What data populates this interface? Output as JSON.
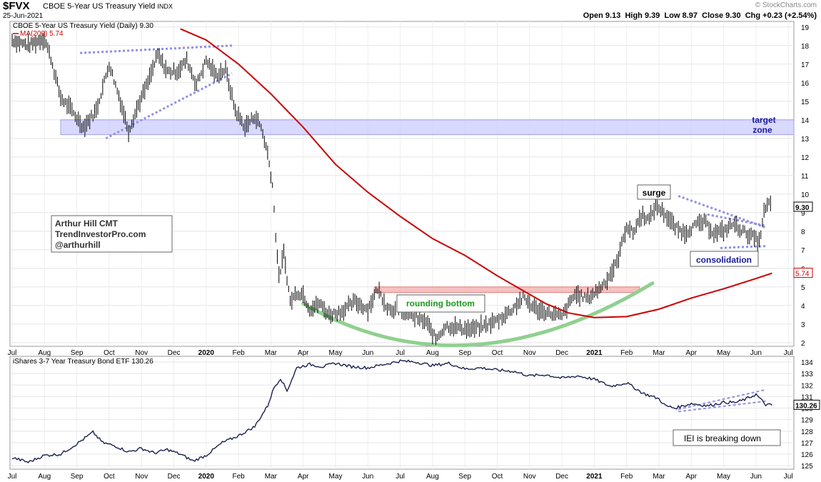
{
  "header": {
    "symbol": "$FVX",
    "description": "CBOE 5-Year US Treasury Yield",
    "exchange": "INDX",
    "date": "25-Jun-2021",
    "open_label": "Open",
    "open": "9.13",
    "high_label": "High",
    "high": "9.39",
    "low_label": "Low",
    "low": "8.97",
    "close_label": "Close",
    "close": "9.30",
    "chg_label": "Chg",
    "chg": "+0.23 (+2.54%)",
    "watermark": "© StockCharts.com"
  },
  "colors": {
    "price": "#000000",
    "ma": "#cc0000",
    "target_zone": "#ccccff",
    "resistance_zone": "#f4b0b0",
    "rounding_curve": "#90d090",
    "trendline": "#9090e0",
    "annotation_green": "#1a9a1a",
    "annotation_blue": "#1a1aa0"
  },
  "chart_data": [
    {
      "type": "line",
      "title": "CBOE 5-Year US Treasury Yield (Daily) 9.30",
      "legend": [
        "CBOE 5-Year US Treasury Yield (Daily) 9.30",
        "MA(200) 5.74"
      ],
      "legend_position": "top-left",
      "x_ticks": [
        "Jul",
        "Aug",
        "Sep",
        "Oct",
        "Nov",
        "Dec",
        "2020",
        "Feb",
        "Mar",
        "Apr",
        "May",
        "Jun",
        "Jul",
        "Aug",
        "Sep",
        "Oct",
        "Nov",
        "Dec",
        "2021",
        "Feb",
        "Mar",
        "Apr",
        "May",
        "Jun",
        "Jul"
      ],
      "y_ticks": [
        2,
        3,
        4,
        5,
        6,
        7,
        8,
        9,
        10,
        11,
        12,
        13,
        14,
        15,
        16,
        17,
        18,
        19
      ],
      "ylim": [
        1.8,
        19.3
      ],
      "grid": true,
      "series": [
        {
          "name": "CBOE 5-Year US Treasury Yield (Daily) 9.30",
          "x": [
            0,
            0.5,
            1,
            1.2,
            1.5,
            1.8,
            2.2,
            2.6,
            3.0,
            3.3,
            3.6,
            3.9,
            4.2,
            4.5,
            4.8,
            5.1,
            5.4,
            5.7,
            6.0,
            6.3,
            6.6,
            6.9,
            7.2,
            7.5,
            7.7,
            7.9,
            8.05,
            8.15,
            8.25,
            8.4,
            8.6,
            8.8,
            9.0,
            9.2,
            9.5,
            9.8,
            10.2,
            10.6,
            11.0,
            11.3,
            11.6,
            12.0,
            12.4,
            12.8,
            13.1,
            13.4,
            13.8,
            14.2,
            14.6,
            15.0,
            15.4,
            15.8,
            16.2,
            16.6,
            17.0,
            17.4,
            17.8,
            18.1,
            18.4,
            18.7,
            19.0,
            19.2,
            19.35,
            19.5,
            19.7,
            19.9,
            20.2,
            20.5,
            20.8,
            21.1,
            21.4,
            21.7,
            22.0,
            22.3,
            22.6,
            22.9,
            23.1,
            23.25,
            23.4,
            23.5
          ],
          "values": [
            18.3,
            18.0,
            18.4,
            17.3,
            15.2,
            14.6,
            13.6,
            14.5,
            17.0,
            15.3,
            13.4,
            14.8,
            16.0,
            17.5,
            16.6,
            16.6,
            17.2,
            15.9,
            17.2,
            16.4,
            16.7,
            14.5,
            13.6,
            14.2,
            13.6,
            12.2,
            10.5,
            7.8,
            5.5,
            6.8,
            4.2,
            4.7,
            4.6,
            3.8,
            4.1,
            3.5,
            3.7,
            4.2,
            3.8,
            4.9,
            3.9,
            3.7,
            3.4,
            3.1,
            2.2,
            2.9,
            2.8,
            2.7,
            2.9,
            3.2,
            3.7,
            4.4,
            3.8,
            3.6,
            3.4,
            4.6,
            4.4,
            4.8,
            5.4,
            6.3,
            8.3,
            7.9,
            8.5,
            8.9,
            8.6,
            9.4,
            8.9,
            8.2,
            7.9,
            8.3,
            8.5,
            7.9,
            8.0,
            8.4,
            8.0,
            7.7,
            7.4,
            9.0,
            9.5,
            9.3
          ]
        },
        {
          "name": "MA(200) 5.74",
          "x": [
            5.2,
            6.0,
            7.0,
            8.0,
            9.0,
            10.0,
            11.0,
            12.0,
            13.0,
            14.0,
            15.0,
            15.8,
            16.5,
            17.2,
            18.0,
            19.0,
            20.0,
            21.0,
            22.0,
            23.0,
            23.5
          ],
          "values": [
            18.9,
            18.3,
            17.0,
            15.4,
            13.6,
            11.6,
            10.1,
            8.8,
            7.6,
            6.7,
            5.6,
            4.8,
            4.1,
            3.6,
            3.35,
            3.4,
            3.8,
            4.4,
            4.9,
            5.45,
            5.74
          ]
        }
      ],
      "annotations": {
        "target_zone": {
          "ymin": 13.2,
          "ymax": 14.0,
          "label_line1": "target",
          "label_line2": "zone"
        },
        "resistance_zone": {
          "ymin": 4.7,
          "ymax": 5.0
        },
        "rounding_bottom": "rounding bottom",
        "surge": "surge",
        "consolidation": "consolidation",
        "author_line1": "Arthur Hill CMT",
        "author_line2": "TrendInvestorPro.com",
        "author_line3": "@arthurhill",
        "last_value_tag": "9.30",
        "ma_value_tag": "5.74"
      }
    },
    {
      "type": "line",
      "title": "iShares 3-7 Year Treasury Bond ETF 130.26",
      "legend": [
        "iShares 3-7 Year Treasury Bond ETF 130.26"
      ],
      "legend_position": "top-left",
      "x_ticks": [
        "Jul",
        "Aug",
        "Sep",
        "Oct",
        "Nov",
        "Dec",
        "2020",
        "Feb",
        "Mar",
        "Apr",
        "May",
        "Jun",
        "Jul",
        "Aug",
        "Sep",
        "Oct",
        "Nov",
        "Dec",
        "2021",
        "Feb",
        "Mar",
        "Apr",
        "May",
        "Jun",
        "Jul"
      ],
      "y_ticks": [
        125,
        126,
        127,
        128,
        129,
        130,
        131,
        132,
        133,
        134
      ],
      "ylim": [
        124.7,
        134.5
      ],
      "grid": true,
      "series": [
        {
          "name": "iShares 3-7 Year Treasury Bond ETF 130.26",
          "x": [
            0,
            0.5,
            1.0,
            1.5,
            2.0,
            2.5,
            2.8,
            3.2,
            3.6,
            4.0,
            4.4,
            4.8,
            5.2,
            5.6,
            6.0,
            6.5,
            7.0,
            7.5,
            7.9,
            8.1,
            8.3,
            8.5,
            8.8,
            9.2,
            9.6,
            10.0,
            10.5,
            11.0,
            11.5,
            12.0,
            12.5,
            13.0,
            13.5,
            14.0,
            14.5,
            15.0,
            15.5,
            16.0,
            16.5,
            17.0,
            17.5,
            18.0,
            18.5,
            19.0,
            19.5,
            20.0,
            20.2,
            20.5,
            21.0,
            21.5,
            22.0,
            22.4,
            22.7,
            23.0,
            23.3,
            23.5
          ],
          "values": [
            125.7,
            125.3,
            125.9,
            126.0,
            126.9,
            127.9,
            127.0,
            126.7,
            126.2,
            126.5,
            126.1,
            126.4,
            126.0,
            125.4,
            125.9,
            127.0,
            127.6,
            128.4,
            130.2,
            131.8,
            132.6,
            131.5,
            133.5,
            133.8,
            133.6,
            133.9,
            133.6,
            133.5,
            133.8,
            134.1,
            134.0,
            133.7,
            133.9,
            133.4,
            133.5,
            133.3,
            133.2,
            132.8,
            132.9,
            132.6,
            132.8,
            132.5,
            131.9,
            132.2,
            131.3,
            130.8,
            130.2,
            130.0,
            130.4,
            130.2,
            130.5,
            130.5,
            130.8,
            131.2,
            130.3,
            130.26
          ]
        }
      ],
      "annotations": {
        "breakdown_label": "IEI is breaking down",
        "last_value_tag": "130.26"
      }
    }
  ]
}
